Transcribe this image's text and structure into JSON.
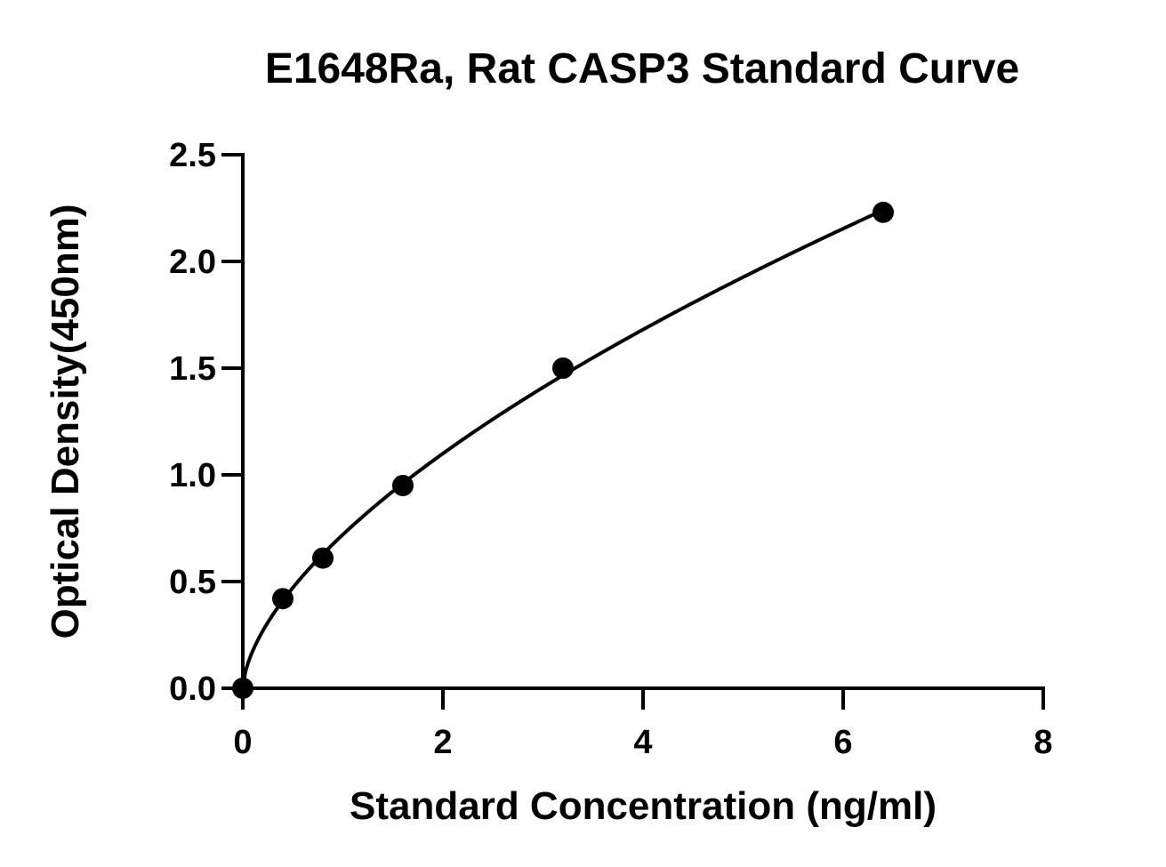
{
  "chart_data": {
    "type": "scatter",
    "title": "E1648Ra, Rat CASP3 Standard Curve",
    "xlabel": "Standard Concentration (ng/ml)",
    "ylabel": "Optical Density(450nm)",
    "xlim": [
      0,
      8
    ],
    "ylim": [
      0,
      2.5
    ],
    "x_ticks": [
      "0",
      "2",
      "4",
      "6",
      "8"
    ],
    "y_ticks": [
      "0.0",
      "0.5",
      "1.0",
      "1.5",
      "2.0",
      "2.5"
    ],
    "grid": false,
    "fit_curve": true,
    "series": [
      {
        "x": [
          0,
          0.4,
          0.8,
          1.6,
          3.2,
          6.4
        ],
        "y": [
          0.0,
          0.42,
          0.61,
          0.95,
          1.5,
          2.23
        ]
      }
    ],
    "colors": {
      "marker": "#000000",
      "line": "#000000"
    }
  }
}
